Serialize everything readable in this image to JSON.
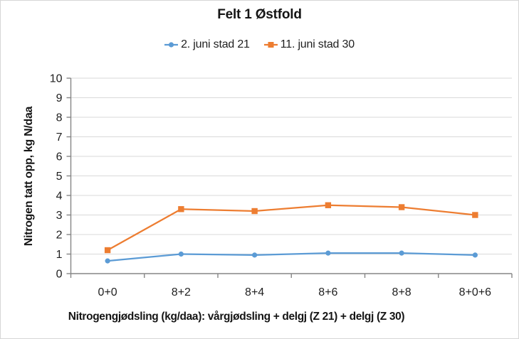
{
  "chart_data": {
    "type": "line",
    "title": "Felt 1 Østfold",
    "categories": [
      "0+0",
      "8+2",
      "8+4",
      "8+6",
      "8+8",
      "8+0+6"
    ],
    "series": [
      {
        "name": "2. juni stad 21",
        "color": "#5B9BD5",
        "marker": "circle",
        "values": [
          0.65,
          1.0,
          0.95,
          1.05,
          1.05,
          0.95
        ]
      },
      {
        "name": "11. juni stad 30",
        "color": "#ED7D31",
        "marker": "square",
        "values": [
          1.2,
          3.3,
          3.2,
          3.5,
          3.4,
          3.0
        ]
      }
    ],
    "xlabel": "Nitrogengjødsling (kg/daa): vårgjødsling + delgj (Z 21) + delgj (Z 30)",
    "ylabel": "Nitrogen tatt opp, kg N/daa",
    "ylim": [
      0,
      10
    ],
    "yticks": [
      0,
      1,
      2,
      3,
      4,
      5,
      6,
      7,
      8,
      9,
      10
    ],
    "grid": true,
    "legend_position": "top-center",
    "colors": {
      "axis": "#868686",
      "gridline": "#D9D9D9",
      "text": "#1F1F1F",
      "background": "#FFFFFF",
      "frame_border": "#D6D6D6"
    }
  }
}
